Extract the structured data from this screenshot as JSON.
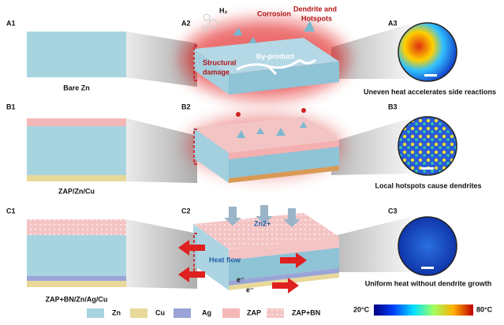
{
  "rows": [
    {
      "panel_labels": [
        "A1",
        "A2",
        "A3"
      ],
      "sample": "Bare Zn",
      "annotations": [
        "H₂",
        "Corrosion",
        "Dendrite and",
        "Hotspots",
        "By-product",
        "Structural",
        "damage"
      ],
      "result": "Uneven heat accelerates side reactions"
    },
    {
      "panel_labels": [
        "B1",
        "B2",
        "B3"
      ],
      "sample": "ZAP/Zn/Cu",
      "result": "Local hotspots cause dendrites"
    },
    {
      "panel_labels": [
        "C1",
        "C2",
        "C3"
      ],
      "sample": "ZAP+BN/Zn/Ag/Cu",
      "annotations": [
        "Zn2+",
        "Heat flow",
        "e⁻",
        "e⁻"
      ],
      "result": "Uniform heat without dendrite growth"
    }
  ],
  "legend": [
    "Zn",
    "Cu",
    "Ag",
    "ZAP",
    "ZAP+BN"
  ],
  "colorbar": {
    "min_label": "20°C",
    "max_label": "80°C"
  }
}
